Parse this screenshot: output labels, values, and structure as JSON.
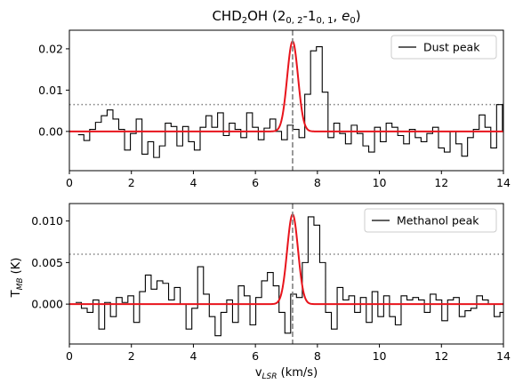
{
  "title": {
    "molecule_base": "CHD",
    "molecule_sub": "2",
    "molecule_tail": "OH (",
    "upper_j": "2",
    "upper_sub": "0, 2",
    "dash": "-",
    "lower_j": "1",
    "lower_sub": "0, 1",
    "sep": ", ",
    "state": "e",
    "state_sub": "0",
    "close": ")"
  },
  "xlabel_main": "v",
  "xlabel_sub": "LSR",
  "xlabel_unit": " (km/s)",
  "ylabel_main": "T",
  "ylabel_sub": "MB",
  "ylabel_unit": " (K)",
  "colors": {
    "spectrum": "#000000",
    "fit": "#e8141c",
    "threshold": "#808080",
    "velocity_line": "#808080"
  },
  "chart_data": [
    {
      "type": "line",
      "panel": "top",
      "legend_label": "Dust peak",
      "legend_position": "upper right",
      "xlim": [
        0,
        14
      ],
      "ylim": [
        -0.0095,
        0.0245
      ],
      "xticks": [
        "0",
        "2",
        "4",
        "6",
        "8",
        "10",
        "12",
        "14"
      ],
      "yticks": [
        {
          "value": 0.0,
          "label": "0.00"
        },
        {
          "value": 0.01,
          "label": "0.01"
        },
        {
          "value": 0.02,
          "label": "0.02"
        }
      ],
      "threshold_level": 0.0065,
      "velocity_marker": 7.2,
      "fit": {
        "amplitude": 0.0218,
        "center": 7.2,
        "sigma": 0.175
      },
      "spectrum_step": 0.1875,
      "spectrum_x_start": 0.28,
      "spectrum_values": [
        -0.0008,
        -0.0022,
        0.0005,
        0.0022,
        0.0038,
        0.0052,
        0.003,
        0.0005,
        -0.0045,
        -0.0005,
        0.003,
        -0.0055,
        -0.0025,
        -0.0063,
        -0.0035,
        0.002,
        0.0012,
        -0.0035,
        0.0012,
        -0.0025,
        -0.0045,
        0.001,
        0.0038,
        0.001,
        0.0045,
        -0.001,
        0.002,
        0.0005,
        -0.0015,
        0.0045,
        0.001,
        -0.002,
        0.0008,
        0.003,
        0.0,
        -0.002,
        0.0015,
        0.0005,
        -0.0015,
        0.009,
        0.0195,
        0.0205,
        0.0095,
        -0.0015,
        0.002,
        -0.0005,
        -0.003,
        0.0015,
        -0.0005,
        -0.0035,
        -0.005,
        0.001,
        -0.0025,
        0.002,
        0.001,
        -0.001,
        -0.003,
        0.0005,
        -0.0015,
        -0.0025,
        -0.0005,
        0.001,
        -0.004,
        -0.005,
        0.0,
        -0.003,
        -0.006,
        -0.0015,
        0.0005,
        0.004,
        0.001,
        -0.004,
        0.0065,
        0.0,
        -0.004,
        -0.002,
        -0.0035,
        0.001,
        0.0055
      ]
    },
    {
      "type": "line",
      "panel": "bottom",
      "legend_label": "Methanol peak",
      "legend_position": "upper right",
      "xlim": [
        0,
        14
      ],
      "ylim": [
        -0.0048,
        0.0121
      ],
      "xticks": [
        "0",
        "2",
        "4",
        "6",
        "8",
        "10",
        "12",
        "14"
      ],
      "yticks": [
        {
          "value": 0.0,
          "label": "0.000"
        },
        {
          "value": 0.005,
          "label": "0.005"
        },
        {
          "value": 0.01,
          "label": "0.010"
        }
      ],
      "threshold_level": 0.006,
      "velocity_marker": 7.2,
      "fit": {
        "amplitude": 0.0108,
        "center": 7.2,
        "sigma": 0.175
      },
      "spectrum_step": 0.1875,
      "spectrum_x_start": 0.2,
      "spectrum_values": [
        0.0002,
        -0.0005,
        -0.001,
        0.0005,
        -0.003,
        0.0002,
        -0.0015,
        0.0008,
        0.0002,
        0.001,
        -0.0022,
        0.0015,
        0.0035,
        0.0018,
        0.0028,
        0.0025,
        0.0005,
        0.002,
        0.0,
        -0.003,
        -0.0005,
        0.0045,
        0.0012,
        -0.0015,
        -0.0038,
        -0.001,
        0.0005,
        -0.0022,
        0.0022,
        0.001,
        -0.0025,
        0.0008,
        0.0028,
        0.0038,
        0.0022,
        -0.001,
        -0.0035,
        0.0012,
        0.0008,
        0.005,
        0.0105,
        0.0095,
        0.005,
        -0.001,
        -0.003,
        0.002,
        0.0005,
        0.001,
        -0.001,
        0.0008,
        -0.0022,
        0.0015,
        -0.0015,
        0.001,
        -0.0015,
        -0.0025,
        0.001,
        0.0005,
        0.0008,
        0.0005,
        -0.001,
        0.0012,
        0.0005,
        -0.002,
        0.0005,
        0.0008,
        -0.0015,
        -0.0008,
        -0.0005,
        0.001,
        0.0005,
        0.0,
        -0.0015,
        -0.001,
        0.0008,
        -0.0015
      ]
    }
  ]
}
